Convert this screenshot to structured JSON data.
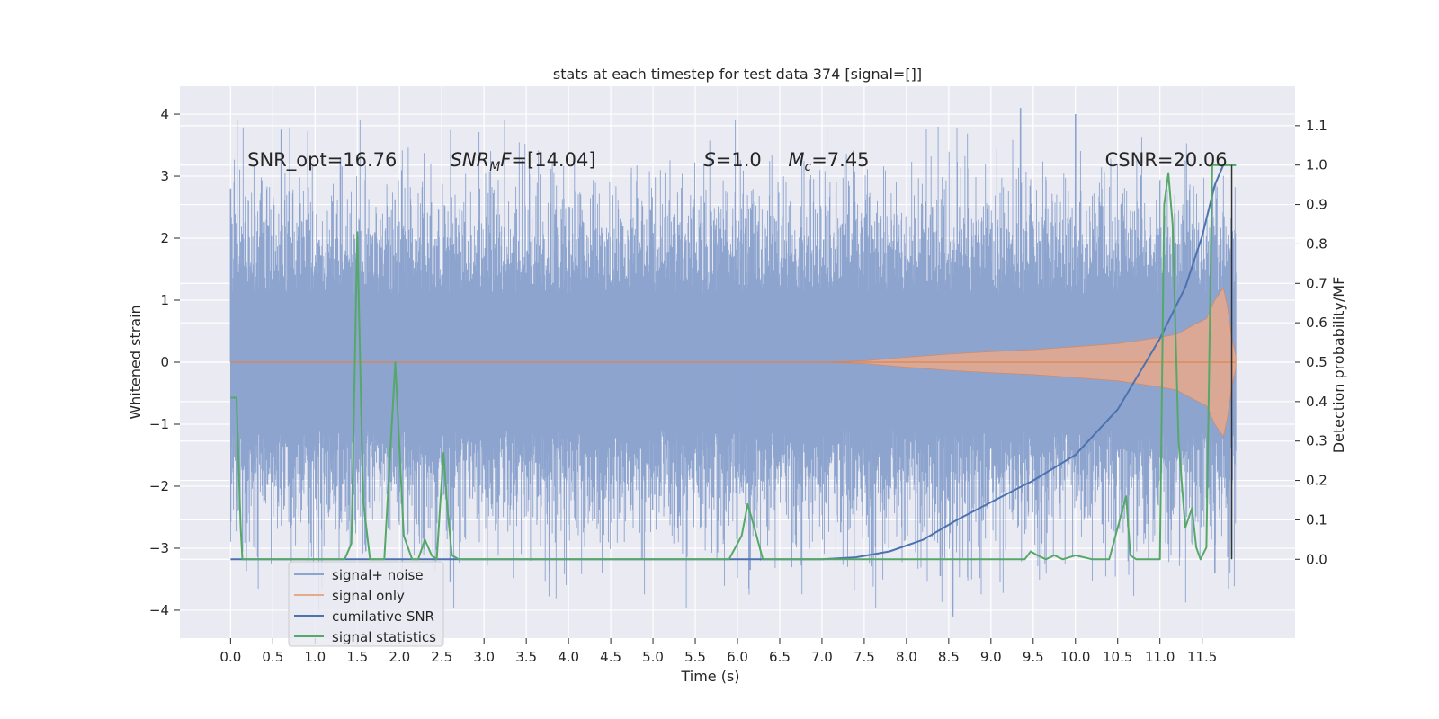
{
  "chart_data": {
    "type": "line",
    "title": "stats at each timestep for test data 374 [signal=[]]",
    "xlabel": "Time (s)",
    "ylabel": "Whitened strain",
    "ylabel_right": "Detection probability/MF",
    "xlim": [
      -0.6,
      12.6
    ],
    "ylim": [
      -4.45,
      4.45
    ],
    "ylim_right": [
      -0.2,
      1.2
    ],
    "grid": true,
    "background": "#eaeaf2",
    "x_ticks": [
      "0.0",
      "0.5",
      "1.0",
      "1.5",
      "2.0",
      "2.5",
      "3.0",
      "3.5",
      "4.0",
      "4.5",
      "5.0",
      "5.5",
      "6.0",
      "6.5",
      "7.0",
      "7.5",
      "8.0",
      "8.5",
      "9.0",
      "9.5",
      "10.0",
      "10.5",
      "11.0",
      "11.5"
    ],
    "y_ticks": [
      "4",
      "3",
      "2",
      "1",
      "0",
      "−1",
      "−2",
      "−3",
      "−4"
    ],
    "y_ticks_right": [
      "1.1",
      "1.0",
      "0.9",
      "0.8",
      "0.7",
      "0.6",
      "0.5",
      "0.4",
      "0.3",
      "0.2",
      "0.1",
      "0.0"
    ],
    "annotations": [
      {
        "text": "SNR_opt=16.76",
        "x": 0.2
      },
      {
        "text": "SNR_MF=[14.04]",
        "x": 2.6
      },
      {
        "text": "S=1.0",
        "x": 5.6
      },
      {
        "text": "M_c=7.45",
        "x": 6.6
      },
      {
        "text": "CSNR=20.06",
        "x": 10.35
      }
    ],
    "legend": {
      "placement": "lower-left",
      "entries": [
        "signal+ noise",
        "signal only",
        "cumilative SNR",
        "signal statistics"
      ]
    },
    "series": [
      {
        "name": "signal+ noise",
        "axis": "left",
        "color": "#4c72b0",
        "render": "dense noise band (white noise, std ≈ 0.9, peaks ≈ ±4)",
        "x_range": [
          0.0,
          11.9
        ],
        "spike_highlights": [
          {
            "x": 0.0,
            "y": 2.8
          },
          {
            "x": 0.6,
            "y": 3.75
          },
          {
            "x": 1.3,
            "y": 3.3
          },
          {
            "x": 1.6,
            "y": -3.05
          },
          {
            "x": 2.6,
            "y": -3.55
          },
          {
            "x": 6.15,
            "y": -3.35
          },
          {
            "x": 8.4,
            "y": -3.45
          },
          {
            "x": 8.55,
            "y": -4.1
          },
          {
            "x": 9.35,
            "y": 4.1
          },
          {
            "x": 10.0,
            "y": 4.0
          },
          {
            "x": 11.65,
            "y": -3.4
          },
          {
            "x": 11.85,
            "y": -3.1
          }
        ]
      },
      {
        "name": "signal only",
        "axis": "left",
        "color": "#dd8452",
        "render": "chirp envelope (amplitude)",
        "x": [
          0.0,
          7.0,
          7.5,
          8.0,
          8.5,
          9.0,
          9.5,
          10.0,
          10.5,
          11.0,
          11.2,
          11.4,
          11.55,
          11.65,
          11.75,
          11.8,
          11.85,
          11.9
        ],
        "y": [
          0.0,
          0.0,
          0.02,
          0.08,
          0.13,
          0.17,
          0.2,
          0.25,
          0.3,
          0.4,
          0.45,
          0.6,
          0.7,
          1.0,
          1.2,
          0.9,
          0.4,
          0.1
        ]
      },
      {
        "name": "cumilative SNR",
        "axis": "right",
        "color": "#4c72b0",
        "x": [
          0.0,
          6.0,
          7.0,
          7.4,
          7.8,
          8.2,
          8.6,
          9.0,
          9.5,
          10.0,
          10.5,
          11.0,
          11.3,
          11.5,
          11.65,
          11.75,
          11.8,
          11.9
        ],
        "y": [
          0.0,
          0.0,
          0.0,
          0.005,
          0.02,
          0.05,
          0.1,
          0.145,
          0.2,
          0.265,
          0.38,
          0.56,
          0.69,
          0.82,
          0.95,
          1.0,
          1.0,
          1.0
        ]
      },
      {
        "name": "signal statistics",
        "axis": "right",
        "color": "#55a868",
        "x": [
          0.0,
          0.07,
          0.12,
          0.14,
          1.35,
          1.43,
          1.5,
          1.57,
          1.65,
          1.82,
          1.95,
          2.05,
          2.15,
          2.22,
          2.3,
          2.38,
          2.44,
          2.52,
          2.57,
          2.62,
          2.7,
          5.9,
          6.05,
          6.12,
          6.2,
          6.3,
          9.4,
          9.47,
          9.55,
          9.65,
          9.75,
          9.85,
          10.0,
          10.2,
          10.4,
          10.6,
          10.65,
          10.72,
          10.78,
          10.85,
          11.0,
          11.05,
          11.1,
          11.15,
          11.22,
          11.3,
          11.38,
          11.43,
          11.48,
          11.55,
          11.62,
          11.68,
          11.73,
          11.8,
          11.9
        ],
        "y": [
          0.41,
          0.41,
          0.08,
          0.0,
          0.0,
          0.04,
          0.83,
          0.15,
          0.0,
          0.0,
          0.5,
          0.06,
          0.0,
          0.0,
          0.05,
          0.01,
          0.0,
          0.27,
          0.12,
          0.01,
          0.0,
          0.0,
          0.06,
          0.14,
          0.08,
          0.0,
          0.0,
          0.02,
          0.01,
          0.0,
          0.01,
          0.0,
          0.01,
          0.0,
          0.0,
          0.16,
          0.01,
          0.0,
          0.0,
          0.0,
          0.0,
          0.9,
          0.98,
          0.85,
          0.3,
          0.08,
          0.13,
          0.03,
          0.0,
          0.03,
          1.0,
          1.0,
          1.0,
          1.0,
          1.0
        ]
      }
    ],
    "vertical_line": {
      "x": 11.85,
      "y_from": 0.0,
      "y_to": 1.0,
      "axis": "right",
      "color": "#333333"
    }
  }
}
